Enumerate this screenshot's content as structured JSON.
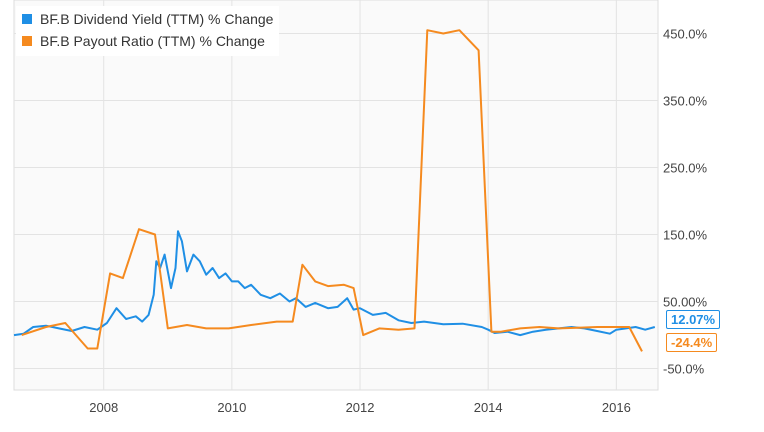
{
  "chart_data": {
    "type": "line",
    "title": "",
    "xlabel": "",
    "ylabel": "",
    "xlim": [
      2006.6,
      2016.65
    ],
    "ylim": [
      -82,
      500
    ],
    "x_ticks": [
      {
        "value": 2008,
        "label": "2008"
      },
      {
        "value": 2010,
        "label": "2010"
      },
      {
        "value": 2012,
        "label": "2012"
      },
      {
        "value": 2014,
        "label": "2014"
      },
      {
        "value": 2016,
        "label": "2016"
      }
    ],
    "y_ticks": [
      {
        "value": 450,
        "label": "450.0%"
      },
      {
        "value": 350,
        "label": "350.0%"
      },
      {
        "value": 250,
        "label": "250.0%"
      },
      {
        "value": 150,
        "label": "150.0%"
      },
      {
        "value": 50,
        "label": "50.00%"
      },
      {
        "value": -50,
        "label": "-50.0%"
      }
    ],
    "grid": true,
    "legend_position": "top-left",
    "series": [
      {
        "name": "BF.B Dividend Yield (TTM) % Change",
        "color": "#1f8fe5",
        "end_label": "12.07%",
        "x": [
          2006.6,
          2006.75,
          2006.9,
          2007.1,
          2007.3,
          2007.5,
          2007.7,
          2007.9,
          2008.05,
          2008.2,
          2008.35,
          2008.5,
          2008.6,
          2008.7,
          2008.78,
          2008.82,
          2008.88,
          2008.95,
          2009.05,
          2009.12,
          2009.16,
          2009.22,
          2009.3,
          2009.4,
          2009.5,
          2009.6,
          2009.7,
          2009.8,
          2009.9,
          2010.0,
          2010.1,
          2010.2,
          2010.3,
          2010.45,
          2010.6,
          2010.75,
          2010.9,
          2011.0,
          2011.15,
          2011.3,
          2011.5,
          2011.65,
          2011.8,
          2011.9,
          2012.0,
          2012.2,
          2012.4,
          2012.6,
          2012.8,
          2013.0,
          2013.3,
          2013.6,
          2013.9,
          2014.0,
          2014.1,
          2014.3,
          2014.5,
          2014.7,
          2014.9,
          2015.1,
          2015.3,
          2015.5,
          2015.7,
          2015.9,
          2016.0,
          2016.15,
          2016.3,
          2016.45,
          2016.6
        ],
        "values": [
          0,
          2,
          12,
          14,
          10,
          6,
          12,
          8,
          18,
          40,
          24,
          28,
          20,
          30,
          60,
          110,
          100,
          120,
          70,
          100,
          155,
          140,
          95,
          120,
          110,
          90,
          100,
          85,
          92,
          80,
          80,
          70,
          75,
          60,
          55,
          62,
          50,
          55,
          42,
          48,
          40,
          42,
          55,
          38,
          40,
          30,
          33,
          22,
          18,
          20,
          16,
          17,
          12,
          8,
          3,
          5,
          0,
          5,
          8,
          10,
          12,
          10,
          6,
          2,
          8,
          10,
          12,
          8,
          12.07
        ]
      },
      {
        "name": "BF.B Payout Ratio (TTM) % Change",
        "color": "#f58a1f",
        "end_label": "-24.4%",
        "x": [
          2006.72,
          2007.1,
          2007.4,
          2007.75,
          2007.9,
          2008.1,
          2008.3,
          2008.55,
          2008.8,
          2009.0,
          2009.3,
          2009.6,
          2009.95,
          2010.3,
          2010.7,
          2010.95,
          2011.1,
          2011.3,
          2011.5,
          2011.75,
          2011.9,
          2012.05,
          2012.3,
          2012.6,
          2012.85,
          2013.05,
          2013.3,
          2013.55,
          2013.85,
          2014.05,
          2014.2,
          2014.5,
          2014.8,
          2015.1,
          2015.4,
          2015.7,
          2015.9,
          2016.2,
          2016.4
        ],
        "values": [
          0,
          12,
          18,
          -20,
          -20,
          92,
          85,
          158,
          150,
          10,
          15,
          10,
          10,
          15,
          20,
          20,
          105,
          80,
          73,
          75,
          70,
          0,
          10,
          8,
          10,
          455,
          450,
          455,
          425,
          5,
          5,
          10,
          12,
          10,
          11,
          12,
          12,
          12,
          -24.4
        ]
      }
    ]
  }
}
